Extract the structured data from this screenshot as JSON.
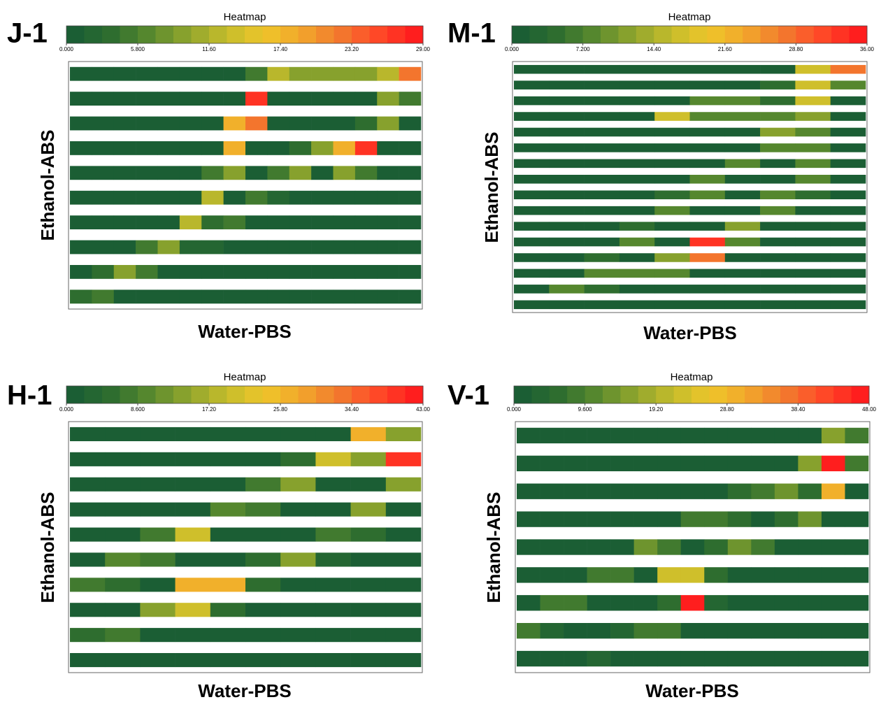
{
  "chart_data": [
    {
      "type": "heatmap",
      "title": "J-1",
      "colorbar_title": "Heatmap",
      "x_label": "Water-PBS",
      "y_label": "Ethanol-ABS",
      "clim": [
        0,
        29
      ],
      "cticks": [
        {
          "value": 0,
          "label": "0.000"
        },
        {
          "value": 5.8,
          "label": "5.800"
        },
        {
          "value": 11.6,
          "label": "11.60"
        },
        {
          "value": 17.4,
          "label": "17.40"
        },
        {
          "value": 23.2,
          "label": "23.20"
        },
        {
          "value": 29,
          "label": "29.00"
        }
      ],
      "colormap": [
        "#1b5e34",
        "#2f6e2f",
        "#5a8a2e",
        "#8fa52d",
        "#c4bc2c",
        "#eec62a",
        "#f2a62c",
        "#f27a2e",
        "#ff4a28",
        "#ff1e1e"
      ],
      "values": [
        [
          0,
          0,
          0,
          0,
          0,
          0,
          0,
          0,
          5.8,
          13,
          8.7,
          8.7,
          8.7,
          8.7,
          13,
          21.8
        ],
        [
          0,
          0,
          0,
          0,
          0,
          0,
          0,
          0,
          27.5,
          0,
          0,
          0,
          0,
          0,
          8.7,
          5.8
        ],
        [
          0,
          0,
          0,
          0,
          0,
          0,
          0,
          17.4,
          21.8,
          0,
          0,
          0,
          0,
          3.5,
          10,
          0
        ],
        [
          0,
          0,
          0,
          0,
          0,
          0,
          0,
          17.4,
          0,
          0,
          3.5,
          8.7,
          17.4,
          27.5,
          0,
          0
        ],
        [
          0,
          0,
          0,
          0,
          0,
          0,
          5.8,
          8.7,
          0,
          5.8,
          8.7,
          0,
          8.7,
          5.8,
          0,
          0
        ],
        [
          0,
          0,
          0,
          0,
          0,
          0,
          13,
          0,
          5.8,
          2,
          0,
          0,
          0,
          0,
          0,
          0
        ],
        [
          0,
          0,
          0,
          0,
          0,
          13,
          3.5,
          5.8,
          0,
          0,
          0,
          0,
          0,
          0,
          0,
          0
        ],
        [
          0,
          0,
          0,
          5.8,
          10,
          2,
          2,
          0,
          0,
          0,
          0,
          0,
          0,
          0,
          0,
          0
        ],
        [
          0,
          3.5,
          8.7,
          5.8,
          0,
          0,
          0,
          0,
          0,
          0,
          0,
          0,
          0,
          0,
          0,
          0
        ],
        [
          3.5,
          5.8,
          0,
          0,
          0,
          0,
          0,
          0,
          0,
          0,
          0,
          0,
          0,
          0,
          0,
          0
        ]
      ]
    },
    {
      "type": "heatmap",
      "title": "M-1",
      "colorbar_title": "Heatmap",
      "x_label": "Water-PBS",
      "y_label": "Ethanol-ABS",
      "clim": [
        0,
        36
      ],
      "cticks": [
        {
          "value": 0,
          "label": "0.000"
        },
        {
          "value": 7.2,
          "label": "7.200"
        },
        {
          "value": 14.4,
          "label": "14.40"
        },
        {
          "value": 21.6,
          "label": "21.60"
        },
        {
          "value": 28.8,
          "label": "28.80"
        },
        {
          "value": 36,
          "label": "36.00"
        }
      ],
      "colormap": [
        "#1b5e34",
        "#2f6e2f",
        "#5a8a2e",
        "#8fa52d",
        "#c4bc2c",
        "#eec62a",
        "#f2a62c",
        "#f27a2e",
        "#ff4a28",
        "#ff1e1e"
      ],
      "values": [
        [
          0,
          0,
          0,
          0,
          0,
          0,
          0,
          0,
          16.2,
          27
        ],
        [
          0,
          0,
          0,
          0,
          0,
          0,
          0,
          4.3,
          16.2,
          7.2
        ],
        [
          0,
          0,
          0,
          0,
          0,
          7.2,
          7.2,
          4.3,
          16.2,
          0
        ],
        [
          0,
          0,
          0,
          0,
          16.2,
          7.2,
          7.2,
          7.2,
          10.8,
          0
        ],
        [
          0,
          0,
          0,
          0,
          0,
          0,
          0,
          10.8,
          7.2,
          0
        ],
        [
          0,
          0,
          0,
          0,
          0,
          0,
          0,
          7.2,
          7.2,
          0
        ],
        [
          0,
          0,
          0,
          0,
          0,
          0,
          7.2,
          0,
          7.2,
          0
        ],
        [
          0,
          0,
          0,
          0,
          0,
          7.2,
          0,
          0,
          7.2,
          0
        ],
        [
          0,
          0,
          0,
          0,
          4.3,
          7.2,
          0,
          7.2,
          4.3,
          0
        ],
        [
          0,
          0,
          0,
          0,
          7.2,
          0,
          0,
          7.2,
          0,
          0
        ],
        [
          0,
          0,
          0,
          4.3,
          0,
          0,
          10.8,
          0,
          0,
          0
        ],
        [
          0,
          0,
          0,
          7.2,
          0,
          34,
          7.2,
          0,
          0,
          0
        ],
        [
          0,
          0,
          4.3,
          0,
          10.8,
          27,
          0,
          0,
          0,
          0
        ],
        [
          0,
          0,
          7.2,
          7.2,
          7.2,
          0,
          0,
          0,
          0,
          0
        ],
        [
          0,
          7.2,
          4.3,
          0,
          0,
          0,
          0,
          0,
          0,
          0
        ],
        [
          0,
          0,
          0,
          0,
          0,
          0,
          0,
          0,
          0,
          0
        ]
      ]
    },
    {
      "type": "heatmap",
      "title": "H-1",
      "colorbar_title": "Heatmap",
      "x_label": "Water-PBS",
      "y_label": "Ethanol-ABS",
      "clim": [
        0,
        43
      ],
      "cticks": [
        {
          "value": 0,
          "label": "0.000"
        },
        {
          "value": 8.6,
          "label": "8.600"
        },
        {
          "value": 17.2,
          "label": "17.20"
        },
        {
          "value": 25.8,
          "label": "25.80"
        },
        {
          "value": 34.4,
          "label": "34.40"
        },
        {
          "value": 43,
          "label": "43.00"
        }
      ],
      "colormap": [
        "#1b5e34",
        "#2f6e2f",
        "#5a8a2e",
        "#8fa52d",
        "#c4bc2c",
        "#eec62a",
        "#f2a62c",
        "#f27a2e",
        "#ff4a28",
        "#ff1e1e"
      ],
      "values": [
        [
          0,
          0,
          0,
          0,
          0,
          0,
          0,
          0,
          25.8,
          12.9
        ],
        [
          0,
          0,
          0,
          0,
          0,
          0,
          5,
          19.4,
          12.9,
          40.8
        ],
        [
          0,
          0,
          0,
          0,
          0,
          8.6,
          12.9,
          0,
          0,
          12.9
        ],
        [
          0,
          0,
          0,
          0,
          10,
          8.6,
          0,
          0,
          12.9,
          0
        ],
        [
          0,
          0,
          8.6,
          19.4,
          0,
          0,
          0,
          8.6,
          5,
          0
        ],
        [
          0,
          10,
          8.6,
          0,
          0,
          5,
          12.9,
          3,
          0,
          0
        ],
        [
          8.6,
          5,
          0,
          25.8,
          25.8,
          5,
          0,
          0,
          0,
          0
        ],
        [
          0,
          0,
          12.9,
          19.4,
          5,
          0,
          0,
          0,
          0,
          0
        ],
        [
          5,
          8.6,
          0,
          0,
          0,
          0,
          0,
          0,
          0,
          0
        ],
        [
          0,
          0,
          0,
          0,
          0,
          0,
          0,
          0,
          0,
          0
        ]
      ]
    },
    {
      "type": "heatmap",
      "title": "V-1",
      "colorbar_title": "Heatmap",
      "x_label": "Water-PBS",
      "y_label": "Ethanol-ABS",
      "clim": [
        0,
        48
      ],
      "cticks": [
        {
          "value": 0,
          "label": "0.000"
        },
        {
          "value": 9.6,
          "label": "9.600"
        },
        {
          "value": 19.2,
          "label": "19.20"
        },
        {
          "value": 28.8,
          "label": "28.80"
        },
        {
          "value": 38.4,
          "label": "38.40"
        },
        {
          "value": 48,
          "label": "48.00"
        }
      ],
      "colormap": [
        "#1b5e34",
        "#2f6e2f",
        "#5a8a2e",
        "#8fa52d",
        "#c4bc2c",
        "#eec62a",
        "#f2a62c",
        "#f27a2e",
        "#ff4a28",
        "#ff1e1e"
      ],
      "values": [
        [
          0,
          0,
          0,
          0,
          0,
          0,
          0,
          0,
          0,
          0,
          0,
          0,
          0,
          14.4,
          9.6
        ],
        [
          0,
          0,
          0,
          0,
          0,
          0,
          0,
          0,
          0,
          0,
          0,
          0,
          14.4,
          45.6,
          9.6
        ],
        [
          0,
          0,
          0,
          0,
          0,
          0,
          0,
          0,
          0,
          5.5,
          9.6,
          12,
          5.5,
          28.8,
          0
        ],
        [
          0,
          0,
          0,
          0,
          0,
          0,
          0,
          8,
          9.6,
          5.5,
          0,
          5.5,
          12,
          0,
          0
        ],
        [
          0,
          0,
          0,
          0,
          0,
          12,
          9.6,
          0,
          5.5,
          12,
          9.6,
          0,
          0,
          0,
          0
        ],
        [
          0,
          0,
          0,
          9.6,
          9.6,
          0,
          21.6,
          21.6,
          5.5,
          0,
          0,
          0,
          0,
          0,
          0
        ],
        [
          0,
          8,
          8,
          0,
          0,
          0,
          5.5,
          45.6,
          4,
          0,
          0,
          0,
          0,
          0,
          0
        ],
        [
          8,
          4,
          0,
          0,
          4,
          9.6,
          9.6,
          0,
          0,
          0,
          0,
          0,
          0,
          0,
          0
        ],
        [
          0,
          0,
          0,
          4,
          0,
          0,
          0,
          0,
          0,
          0,
          0,
          0,
          0,
          0,
          0
        ]
      ]
    }
  ]
}
